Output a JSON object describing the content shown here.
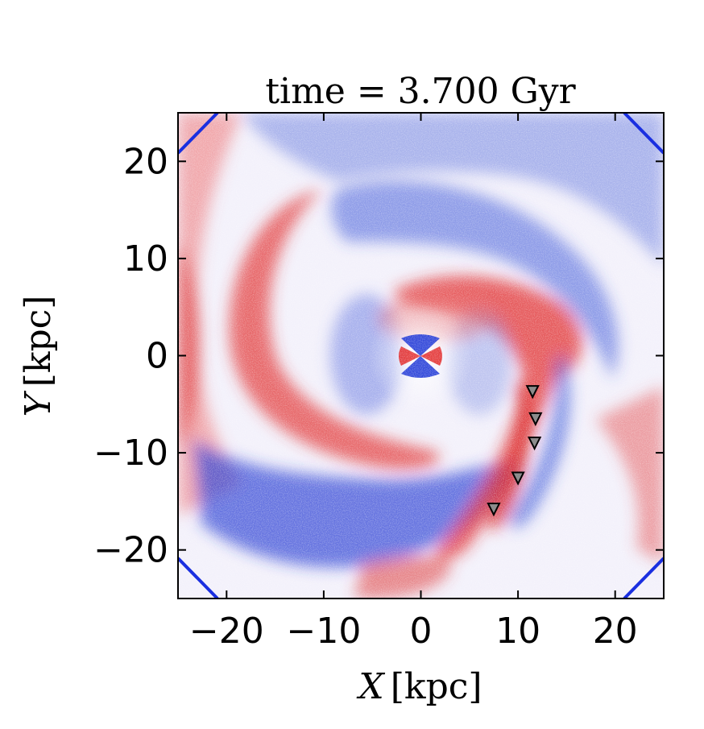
{
  "chart_data": {
    "type": "heatmap",
    "title": "time = 3.700 Gyr",
    "xlabel": {
      "symbol": "X",
      "unit": "[kpc]"
    },
    "ylabel": {
      "symbol": "Y",
      "unit": "[kpc]"
    },
    "xlim": [
      -25,
      25
    ],
    "ylim": [
      -25,
      25
    ],
    "xticks": [
      -20,
      -10,
      0,
      10,
      20
    ],
    "yticks": [
      -20,
      -10,
      0,
      10,
      20
    ],
    "xtick_labels": [
      "−20",
      "−10",
      "0",
      "10",
      "20"
    ],
    "ytick_labels": [
      "−20",
      "−10",
      "0",
      "10",
      "20"
    ],
    "grid": false,
    "colormap": {
      "positive": "#e8141c",
      "zero": "#ffffff",
      "negative": "#1a2fd6"
    },
    "markers": {
      "shape": "triangle-down",
      "fill": "#8c8c8c",
      "stroke": "#000000",
      "points": [
        {
          "x": 11.5,
          "y": -3.7
        },
        {
          "x": 11.8,
          "y": -6.5
        },
        {
          "x": 11.7,
          "y": -9.0
        },
        {
          "x": 10.0,
          "y": -12.6
        },
        {
          "x": 7.5,
          "y": -15.8
        }
      ]
    }
  }
}
